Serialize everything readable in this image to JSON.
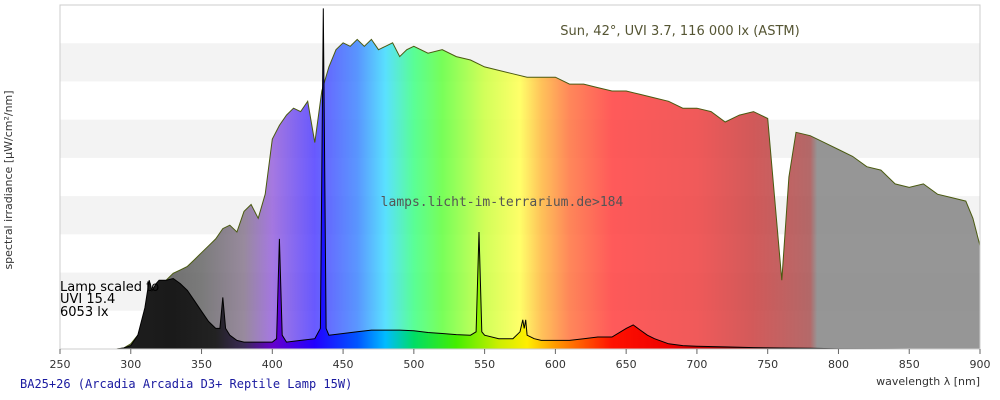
{
  "chart_data": {
    "type": "area",
    "ylabel": "spectral irradiance [µW/cm²/nm]",
    "xlabel": "wavelength λ [nm]",
    "xlim": [
      250,
      900
    ],
    "ylim": [
      0,
      1
    ],
    "x_ticks": [
      "250",
      "300",
      "350",
      "400",
      "450",
      "500",
      "550",
      "600",
      "650",
      "700",
      "750",
      "800",
      "850",
      "900"
    ],
    "grid": "horizontal bands",
    "sun_label": "Sun, 42°, UVI 3.7, 116 000 lx (ASTM)",
    "watermark": "lamps.licht-im-terrarium.de>184",
    "lamp_label": [
      "Lamp scaled to",
      "UVI 15.4",
      "6053 lx"
    ],
    "series": [
      {
        "name": "Sun, 42°, UVI 3.7, 116 000 lx (ASTM)",
        "x": [
          290,
          295,
          300,
          305,
          310,
          315,
          320,
          325,
          330,
          335,
          340,
          345,
          350,
          355,
          360,
          365,
          370,
          375,
          380,
          385,
          390,
          395,
          400,
          405,
          410,
          415,
          420,
          425,
          430,
          435,
          440,
          445,
          450,
          455,
          460,
          465,
          470,
          475,
          480,
          485,
          490,
          495,
          500,
          510,
          520,
          530,
          540,
          550,
          560,
          570,
          580,
          590,
          600,
          610,
          620,
          630,
          640,
          650,
          660,
          670,
          680,
          690,
          700,
          710,
          720,
          730,
          740,
          750,
          760,
          765,
          770,
          780,
          790,
          800,
          810,
          820,
          830,
          840,
          850,
          860,
          870,
          880,
          890,
          895,
          900
        ],
        "y": [
          0.0,
          0.003,
          0.015,
          0.04,
          0.07,
          0.11,
          0.15,
          0.2,
          0.22,
          0.23,
          0.24,
          0.26,
          0.28,
          0.3,
          0.32,
          0.35,
          0.36,
          0.34,
          0.4,
          0.42,
          0.38,
          0.45,
          0.61,
          0.65,
          0.68,
          0.7,
          0.69,
          0.72,
          0.6,
          0.75,
          0.82,
          0.87,
          0.89,
          0.88,
          0.9,
          0.88,
          0.9,
          0.87,
          0.88,
          0.89,
          0.85,
          0.87,
          0.88,
          0.86,
          0.87,
          0.85,
          0.84,
          0.82,
          0.81,
          0.8,
          0.79,
          0.79,
          0.79,
          0.77,
          0.77,
          0.76,
          0.75,
          0.75,
          0.74,
          0.73,
          0.72,
          0.7,
          0.7,
          0.69,
          0.66,
          0.68,
          0.69,
          0.67,
          0.2,
          0.5,
          0.63,
          0.62,
          0.6,
          0.58,
          0.56,
          0.53,
          0.52,
          0.48,
          0.47,
          0.48,
          0.45,
          0.44,
          0.43,
          0.38,
          0.3
        ]
      },
      {
        "name": "Lamp scaled to UVI 15.4, 6053 lx",
        "x": [
          290,
          295,
          300,
          305,
          310,
          313,
          315,
          318,
          320,
          325,
          330,
          335,
          340,
          345,
          350,
          355,
          360,
          363,
          365,
          367,
          370,
          375,
          380,
          385,
          390,
          395,
          400,
          403,
          405,
          407,
          410,
          420,
          430,
          434,
          436,
          438,
          440,
          450,
          460,
          470,
          480,
          490,
          500,
          510,
          520,
          530,
          540,
          544,
          546,
          548,
          550,
          560,
          570,
          575,
          577,
          578,
          579,
          580,
          585,
          590,
          600,
          610,
          620,
          630,
          640,
          650,
          655,
          660,
          665,
          670,
          680,
          690,
          700,
          720,
          740,
          760,
          780,
          800,
          850,
          900
        ],
        "y": [
          0.0,
          0.003,
          0.01,
          0.04,
          0.12,
          0.2,
          0.17,
          0.19,
          0.2,
          0.2,
          0.205,
          0.19,
          0.17,
          0.14,
          0.11,
          0.08,
          0.06,
          0.06,
          0.15,
          0.06,
          0.04,
          0.025,
          0.02,
          0.02,
          0.02,
          0.02,
          0.02,
          0.03,
          0.32,
          0.04,
          0.02,
          0.025,
          0.03,
          0.06,
          0.99,
          0.06,
          0.04,
          0.045,
          0.05,
          0.055,
          0.055,
          0.055,
          0.053,
          0.048,
          0.045,
          0.042,
          0.04,
          0.05,
          0.34,
          0.05,
          0.04,
          0.03,
          0.03,
          0.05,
          0.085,
          0.06,
          0.085,
          0.04,
          0.03,
          0.025,
          0.025,
          0.025,
          0.03,
          0.035,
          0.035,
          0.06,
          0.07,
          0.055,
          0.04,
          0.03,
          0.015,
          0.01,
          0.008,
          0.006,
          0.004,
          0.003,
          0.002,
          0.001,
          0.0,
          0.0
        ]
      }
    ]
  },
  "caption": "BA25+26 (Arcadia Arcadia D3+ Reptile Lamp 15W)",
  "colors": {
    "sun_line": "#4a5a10",
    "sun_label": "#555533",
    "lamp_line": "#000000",
    "band": "#f3f3f3",
    "caption": "#1a1aa0",
    "axis_text": "#333333"
  }
}
